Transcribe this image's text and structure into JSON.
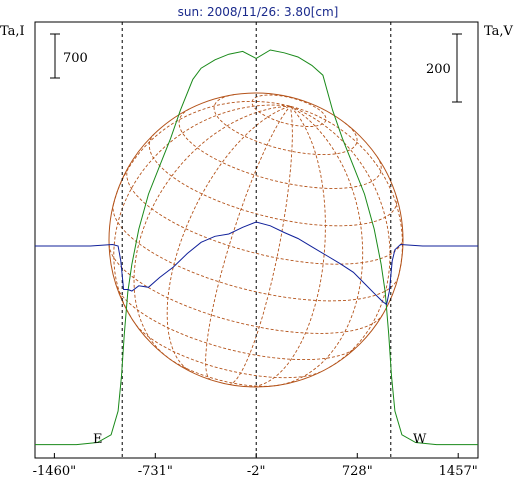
{
  "title": "sun: 2008/11/26: 3.80[cm]",
  "left_axis_label": "Ta,I",
  "right_axis_label": "Ta,V",
  "scale_left_value": "700",
  "scale_right_value": "200",
  "limb_labels": {
    "east": "E",
    "west": "W"
  },
  "colors": {
    "stokes_i": "#1a8a1a",
    "stokes_v": "#10209a",
    "grid": "#b4531a",
    "frame": "#000000",
    "title": "#1a2a8c"
  },
  "chart_data": {
    "type": "line",
    "title": "sun: 2008/11/26: 3.80[cm]",
    "xlabel": "",
    "ylabel_left": "Ta,I",
    "ylabel_right": "Ta,V",
    "xlim": [
      -1600,
      1600
    ],
    "x_ticks": [
      -1460,
      -731,
      -2,
      728,
      1457
    ],
    "x_tick_labels": [
      "-1460\"",
      "-731\"",
      "-2\"",
      "728\"",
      "1457\""
    ],
    "limb_marks": [
      -970,
      970
    ],
    "y_left_scale_bar": 700,
    "y_right_scale_bar": 200,
    "series": [
      {
        "name": "Ta,I",
        "x": [
          -1600,
          -1300,
          -1150,
          -1050,
          -1000,
          -975,
          -955,
          -930,
          -900,
          -850,
          -780,
          -700,
          -620,
          -550,
          -460,
          -400,
          -300,
          -200,
          -100,
          -2,
          100,
          200,
          300,
          400,
          480,
          550,
          620,
          700,
          780,
          850,
          900,
          930,
          955,
          975,
          1000,
          1050,
          1150,
          1300,
          1600
        ],
        "y": [
          10,
          10,
          25,
          80,
          250,
          500,
          800,
          1100,
          1300,
          1550,
          1800,
          2000,
          2200,
          2400,
          2620,
          2700,
          2760,
          2800,
          2820,
          2770,
          2830,
          2810,
          2780,
          2720,
          2650,
          2400,
          2200,
          2000,
          1800,
          1550,
          1300,
          1100,
          800,
          500,
          250,
          80,
          25,
          10,
          10
        ]
      },
      {
        "name": "Ta,V",
        "x": [
          -1600,
          -1200,
          -1040,
          -1000,
          -980,
          -960,
          -930,
          -900,
          -850,
          -780,
          -700,
          -600,
          -500,
          -400,
          -300,
          -200,
          -100,
          -2,
          100,
          200,
          300,
          400,
          500,
          600,
          700,
          780,
          850,
          910,
          940,
          960,
          980,
          1000,
          1040,
          1200,
          1600
        ],
        "y": [
          0,
          0,
          2,
          0,
          -20,
          -58,
          -58,
          -60,
          -53,
          -55,
          -42,
          -28,
          -10,
          5,
          13,
          16,
          25,
          32,
          27,
          18,
          10,
          -1,
          -12,
          -23,
          -35,
          -50,
          -63,
          -74,
          -78,
          -60,
          -20,
          -5,
          2,
          0,
          0
        ]
      }
    ]
  }
}
